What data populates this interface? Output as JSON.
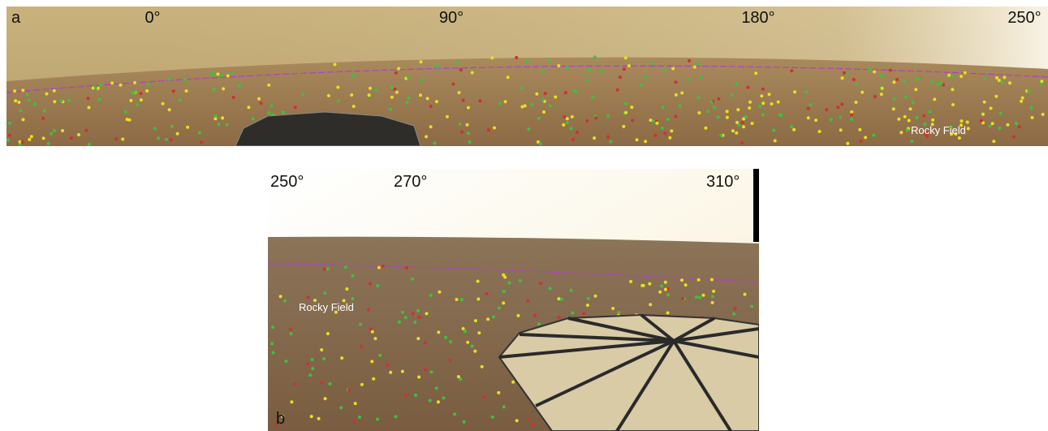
{
  "panel_a": {
    "label": "a",
    "azimuth_labels": [
      "0°",
      "90°",
      "180°",
      "250°"
    ],
    "annotation": "Rocky Field"
  },
  "panel_b": {
    "label": "b",
    "azimuth_labels": [
      "250°",
      "270°",
      "310°"
    ],
    "annotation": "Rocky Field"
  }
}
